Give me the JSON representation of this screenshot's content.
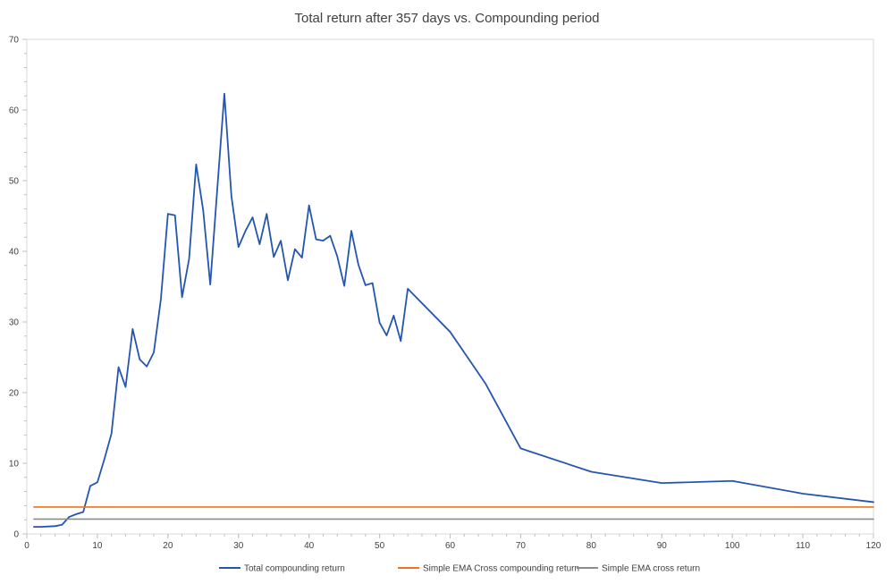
{
  "chart_data": {
    "type": "line",
    "title": "Total return after 357 days vs. Compounding period",
    "xlabel": "",
    "ylabel": "",
    "xlim": [
      0,
      120
    ],
    "ylim": [
      0,
      70
    ],
    "x_ticks": [
      0,
      10,
      20,
      30,
      40,
      50,
      60,
      70,
      80,
      90,
      100,
      110,
      120
    ],
    "y_ticks": [
      0,
      10,
      20,
      30,
      40,
      50,
      60,
      70
    ],
    "grid": false,
    "legend_position": "bottom",
    "series": [
      {
        "name": "Total compounding return",
        "color": "#2456b0",
        "x": [
          1,
          2,
          3,
          4,
          5,
          6,
          7,
          8,
          9,
          10,
          11,
          12,
          13,
          14,
          15,
          16,
          17,
          18,
          19,
          20,
          21,
          22,
          23,
          24,
          25,
          26,
          27,
          28,
          29,
          30,
          31,
          32,
          33,
          34,
          35,
          36,
          37,
          38,
          39,
          40,
          41,
          42,
          43,
          44,
          45,
          46,
          47,
          48,
          49,
          50,
          51,
          52,
          53,
          54,
          60,
          65,
          70,
          80,
          90,
          100,
          110,
          120
        ],
        "y": [
          1.0,
          1.0,
          1.05,
          1.1,
          1.3,
          2.4,
          2.8,
          3.1,
          6.8,
          7.3,
          10.6,
          14.2,
          23.6,
          20.8,
          29.0,
          24.7,
          23.7,
          25.7,
          33.2,
          45.3,
          45.1,
          33.5,
          38.9,
          52.3,
          45.8,
          35.3,
          48.9,
          62.3,
          47.8,
          40.6,
          42.9,
          44.8,
          41.0,
          45.3,
          39.2,
          41.5,
          35.9,
          40.3,
          39.1,
          46.5,
          41.7,
          41.5,
          42.2,
          39.3,
          35.1,
          42.9,
          38.1,
          35.2,
          35.5,
          29.9,
          28.1,
          30.9,
          27.3,
          34.7,
          28.6,
          21.3,
          12.1,
          8.8,
          7.2,
          7.5,
          5.7,
          4.5
        ]
      },
      {
        "name": "Simple EMA Cross compounding return",
        "color": "#f0731f",
        "x": [
          1,
          120
        ],
        "y": [
          3.8,
          3.8
        ]
      },
      {
        "name": "Simple EMA cross return",
        "color": "#8c8c8c",
        "x": [
          1,
          120
        ],
        "y": [
          2.1,
          2.1
        ]
      }
    ]
  }
}
